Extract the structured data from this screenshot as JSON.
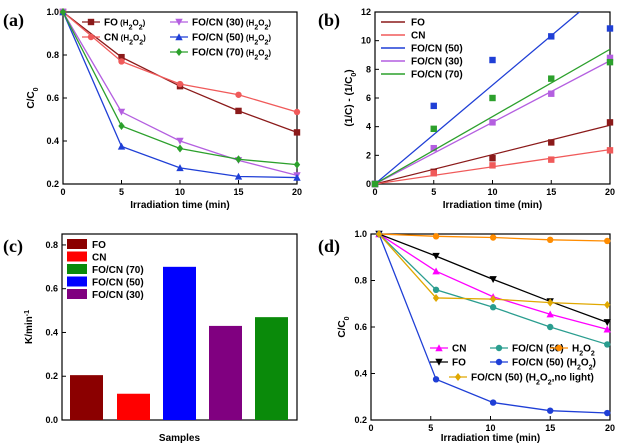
{
  "chart_data": [
    {
      "panel": "(a)",
      "type": "line",
      "xlabel": "Irradiation time (min)",
      "ylabel": "C/C",
      "ylabel_sub": "0",
      "xlim": [
        0,
        20
      ],
      "ylim": [
        0.2,
        1.0
      ],
      "xticks": [
        0,
        5,
        10,
        15,
        20
      ],
      "yticks": [
        0.2,
        0.4,
        0.6,
        0.8,
        1.0
      ],
      "x": [
        0,
        5,
        10,
        15,
        20
      ],
      "legend_position": "top-right",
      "series": [
        {
          "name": "FO",
          "name_suffix": " (H",
          "sub": "2",
          "mid": "O",
          "sub2": "2",
          "end": ")",
          "color": "#8b1a1a",
          "marker": "square",
          "values": [
            1.0,
            0.79,
            0.655,
            0.54,
            0.44
          ]
        },
        {
          "name": "CN",
          "name_suffix": " (H",
          "sub": "2",
          "mid": "O",
          "sub2": "2",
          "end": ")",
          "color": "#f05a5a",
          "marker": "circle",
          "values": [
            1.0,
            0.77,
            0.665,
            0.615,
            0.535
          ]
        },
        {
          "name": "FO/CN (30)",
          "name_suffix": " (H",
          "sub": "2",
          "mid": "O",
          "sub2": "2",
          "end": ")",
          "color": "#b45fe0",
          "marker": "triangle-down",
          "values": [
            1.0,
            0.535,
            0.4,
            0.31,
            0.24
          ]
        },
        {
          "name": "FO/CN (50)",
          "name_suffix": " (H",
          "sub": "2",
          "mid": "O",
          "sub2": "2",
          "end": ")",
          "color": "#1f3fd6",
          "marker": "triangle",
          "values": [
            1.0,
            0.375,
            0.275,
            0.235,
            0.23
          ]
        },
        {
          "name": "FO/CN (70)",
          "name_suffix": " (H",
          "sub": "2",
          "mid": "O",
          "sub2": "2",
          "end": ")",
          "color": "#2ca02c",
          "marker": "diamond",
          "values": [
            1.0,
            0.47,
            0.365,
            0.315,
            0.29
          ]
        }
      ]
    },
    {
      "panel": "(b)",
      "type": "scatter",
      "xlabel": "Irradiation time (min)",
      "ylabel": "(1/C) - (1/C",
      "ylabel_sub": "0",
      "ylabel_end": ")",
      "xlim": [
        0,
        20
      ],
      "ylim": [
        0,
        12
      ],
      "xticks": [
        0,
        5,
        10,
        15,
        20
      ],
      "yticks": [
        0,
        2,
        4,
        6,
        8,
        10,
        12
      ],
      "x": [
        0,
        5,
        10,
        15,
        20
      ],
      "legend_position": "top-left",
      "series": [
        {
          "name": "FO",
          "color": "#8b1a1a",
          "points": [
            0.0,
            0.85,
            1.8,
            2.9,
            4.3
          ],
          "slope": 0.205
        },
        {
          "name": "CN",
          "color": "#f05a5a",
          "points": [
            0.0,
            0.75,
            1.3,
            1.7,
            2.35
          ],
          "slope": 0.12
        },
        {
          "name": "FO/CN (50)",
          "color": "#1f3fd6",
          "points": [
            0.0,
            5.45,
            8.65,
            10.3,
            10.85
          ],
          "slope": 0.69
        },
        {
          "name": "FO/CN (30)",
          "color": "#b45fe0",
          "points": [
            0.0,
            2.5,
            4.3,
            6.3,
            8.8
          ],
          "slope": 0.43
        },
        {
          "name": "FO/CN (70)",
          "color": "#2ca02c",
          "points": [
            0.0,
            3.85,
            6.0,
            7.35,
            8.5
          ],
          "slope": 0.47
        }
      ]
    },
    {
      "panel": "(c)",
      "type": "bar",
      "xlabel": "Samples",
      "ylabel": "K/min",
      "ylabel_sup": "-1",
      "ylim": [
        0,
        0.85
      ],
      "yticks": [
        0.0,
        0.2,
        0.4,
        0.6,
        0.8
      ],
      "legend_position": "top-left",
      "legend": [
        {
          "name": "FO",
          "color": "#8b0000"
        },
        {
          "name": "CN",
          "color": "#ff0000"
        },
        {
          "name": "FO/CN (70)",
          "color": "#0a8a0a"
        },
        {
          "name": "FO/CN (50)",
          "color": "#0000ff"
        },
        {
          "name": "FO/CN (30)",
          "color": "#800080"
        }
      ],
      "bars": [
        {
          "name": "FO",
          "color": "#8b0000",
          "value": 0.205
        },
        {
          "name": "CN",
          "color": "#ff0000",
          "value": 0.12
        },
        {
          "name": "FO/CN (50)",
          "color": "#0000ff",
          "value": 0.7
        },
        {
          "name": "FO/CN (30)",
          "color": "#800080",
          "value": 0.43
        },
        {
          "name": "FO/CN (70)",
          "color": "#0a8a0a",
          "value": 0.47
        }
      ]
    },
    {
      "panel": "(d)",
      "type": "line",
      "xlabel": "Irradiation time (min)",
      "ylabel": "C/C",
      "ylabel_sub": "0",
      "xlim": [
        0,
        20
      ],
      "ylim": [
        0.2,
        1.0
      ],
      "xticks": [
        0,
        5,
        10,
        15,
        20
      ],
      "yticks": [
        0.2,
        0.4,
        0.6,
        0.8,
        1.0
      ],
      "x": [
        0,
        5,
        10,
        15,
        20
      ],
      "legend_position": "bottom",
      "series": [
        {
          "name": "CN",
          "color": "#ff00ff",
          "marker": "triangle",
          "values": [
            1.0,
            0.84,
            0.73,
            0.655,
            0.59
          ]
        },
        {
          "name": "FO/CN (50)",
          "color": "#2a9d8f",
          "marker": "circle",
          "values": [
            1.0,
            0.76,
            0.685,
            0.6,
            0.525
          ]
        },
        {
          "name": "H",
          "name_sub": "2",
          "name_mid": "O",
          "name_sub2": "2",
          "color": "#ff8c00",
          "marker": "circle",
          "values": [
            1.0,
            0.99,
            0.985,
            0.975,
            0.97
          ]
        },
        {
          "name": "FO",
          "color": "#000000",
          "marker": "triangle-down",
          "values": [
            1.0,
            0.905,
            0.805,
            0.71,
            0.62
          ]
        },
        {
          "name": "FO/CN (50) (H",
          "name_sub": "2",
          "name_mid": "O",
          "name_sub2": "2",
          "name_end": ")",
          "color": "#1f3fd6",
          "marker": "circle",
          "values": [
            1.0,
            0.375,
            0.275,
            0.24,
            0.23
          ]
        },
        {
          "name": "FO/CN (50) (H",
          "name_sub": "2",
          "name_mid": "O",
          "name_sub2": "2",
          "name_end": ",no light)",
          "color": "#e0a800",
          "marker": "diamond",
          "values": [
            1.0,
            0.725,
            0.72,
            0.705,
            0.695
          ]
        }
      ]
    }
  ]
}
